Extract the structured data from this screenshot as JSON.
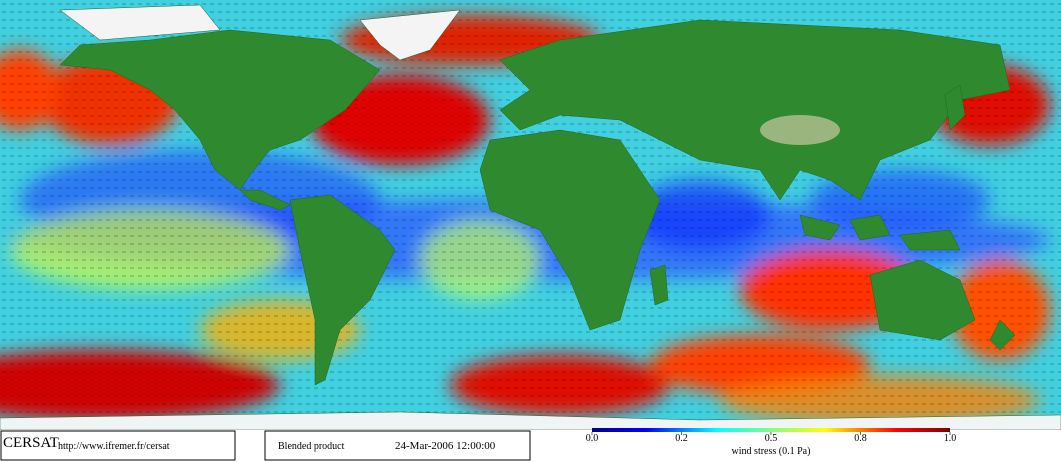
{
  "credit": {
    "name": "CERSAT",
    "url": "http://www.ifremer.fr/cersat"
  },
  "product": "Blended product",
  "date": "24-Mar-2006 12:00:00",
  "colorbar": {
    "label": "wind stress (0.1 Pa)",
    "ticks": [
      {
        "value": 0,
        "label": "0.0"
      },
      0.2,
      0.5,
      0.8,
      {
        "value": 1,
        "label": "1.0"
      }
    ]
  }
}
